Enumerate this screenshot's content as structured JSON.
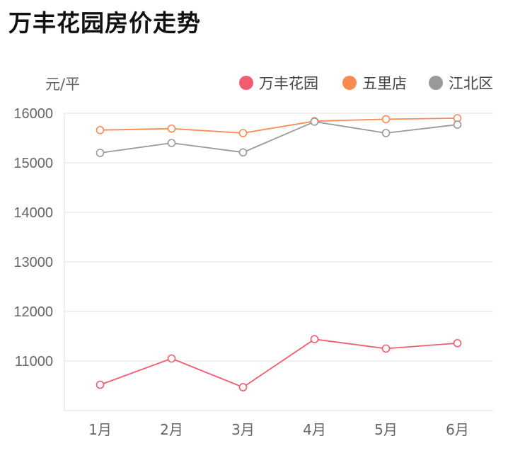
{
  "page": {
    "title": "万丰花园房价走势"
  },
  "chart_data": {
    "type": "line",
    "categories": [
      "1月",
      "2月",
      "3月",
      "4月",
      "5月",
      "6月"
    ],
    "ylabel": "元/平",
    "ylim": [
      10000,
      16000
    ],
    "yticks": [
      11000,
      12000,
      13000,
      14000,
      15000,
      16000
    ],
    "grid": true,
    "legend": "top-right",
    "series": [
      {
        "name": "万丰花园",
        "color": "#f25c6e",
        "values": [
          10520,
          11050,
          10470,
          11440,
          11250,
          11360
        ]
      },
      {
        "name": "五里店",
        "color": "#fb8a50",
        "values": [
          15660,
          15690,
          15600,
          15840,
          15880,
          15900
        ]
      },
      {
        "name": "江北区",
        "color": "#999999",
        "values": [
          15200,
          15400,
          15210,
          15830,
          15600,
          15770
        ]
      }
    ]
  }
}
